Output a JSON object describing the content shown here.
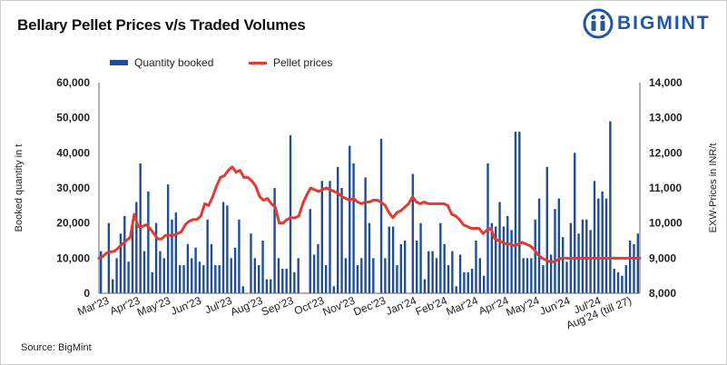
{
  "header": {
    "title": "Bellary Pellet Prices v/s Traded Volumes",
    "brand": "BIGMINT",
    "source": "Source: BigMint"
  },
  "colors": {
    "bars": "#1f4e97",
    "line": "#e23b33",
    "brand": "#1f57a4"
  },
  "chart_data": {
    "type": "bar+line",
    "title": "Bellary Pellet Prices v/s Traded Volumes",
    "ylabel_left": "Booked quantity in t",
    "ylabel_right": "EXW-Prices in INR/t",
    "y_left_range": [
      0,
      60000
    ],
    "y_right_range": [
      8000,
      14000
    ],
    "y_left_ticks": [
      "0",
      "10,000",
      "20,000",
      "30,000",
      "40,000",
      "50,000",
      "60,000"
    ],
    "y_right_ticks": [
      "8,000",
      "9,000",
      "10,000",
      "11,000",
      "12,000",
      "13,000",
      "14,000"
    ],
    "x_tick_labels": [
      "Mar'23",
      "Apr'23",
      "May'23",
      "Jun'23",
      "Jul'23",
      "Aug'23",
      "Sep'23",
      "Oct'23",
      "Nov'23",
      "Dec'23",
      "Jan'24",
      "Feb'24",
      "Mar'24",
      "Apr'24",
      "May'24",
      "Jun'24",
      "Jul'24",
      "Aug'24 (till 27)"
    ],
    "legend": {
      "position": "top",
      "entries": [
        "Quantity booked",
        "Pellet prices"
      ]
    },
    "grid": false,
    "series": [
      {
        "name": "Quantity booked",
        "type": "bar",
        "axis": "left",
        "values": [
          12000,
          0,
          20000,
          4000,
          10000,
          17000,
          22000,
          9000,
          19000,
          26000,
          37000,
          12000,
          29000,
          6000,
          20000,
          12000,
          10000,
          31000,
          21000,
          23000,
          8000,
          8000,
          14000,
          10000,
          13000,
          9000,
          8000,
          21000,
          14000,
          8000,
          8000,
          26000,
          25000,
          10000,
          13000,
          21000,
          2000,
          0,
          17000,
          10000,
          8000,
          15000,
          4000,
          4000,
          30000,
          10000,
          7000,
          7000,
          45000,
          6000,
          10000,
          0,
          0,
          24000,
          11000,
          14000,
          32000,
          8000,
          32000,
          2000,
          36000,
          30000,
          10000,
          42000,
          37000,
          8000,
          10000,
          33000,
          20000,
          10000,
          0,
          44000,
          10000,
          19000,
          19000,
          8000,
          14000,
          15000,
          0,
          34000,
          15000,
          20000,
          4000,
          12000,
          12000,
          10000,
          20000,
          14000,
          8000,
          12000,
          2000,
          11000,
          6000,
          6000,
          7000,
          15000,
          10000,
          5000,
          37000,
          20000,
          19000,
          26000,
          19000,
          22000,
          18000,
          46000,
          46000,
          10000,
          10000,
          10000,
          21000,
          27000,
          8000,
          36000,
          11000,
          24000,
          27000,
          16000,
          9000,
          20000,
          40000,
          17000,
          21000,
          21000,
          18000,
          32000,
          27000,
          29000,
          27000,
          49000,
          7000,
          6000,
          5000,
          8000,
          15000,
          14000,
          17000
        ]
      },
      {
        "name": "Pellet prices",
        "type": "line",
        "axis": "right",
        "values": [
          9000,
          9050,
          9150,
          9180,
          9200,
          9300,
          9400,
          9500,
          9600,
          10250,
          9900,
          9900,
          9950,
          9850,
          9700,
          9550,
          9550,
          9650,
          9650,
          9650,
          9700,
          9750,
          9950,
          10050,
          10100,
          10100,
          10200,
          10550,
          10500,
          10750,
          11050,
          11300,
          11350,
          11500,
          11600,
          11450,
          11500,
          11300,
          11300,
          11200,
          11050,
          10750,
          10650,
          10700,
          10550,
          10450,
          10000,
          10000,
          10100,
          10150,
          10150,
          10200,
          10550,
          10800,
          11000,
          10950,
          10900,
          10950,
          11000,
          10950,
          10900,
          10850,
          10750,
          10700,
          10650,
          10700,
          10600,
          10550,
          10600,
          10600,
          10650,
          10650,
          10600,
          10500,
          10300,
          10150,
          10300,
          10350,
          10450,
          10550,
          10750,
          10600,
          10550,
          10600,
          10550,
          10550,
          10550,
          10550,
          10550,
          10500,
          10250,
          10200,
          10100,
          9950,
          9900,
          9850,
          9850,
          9850,
          9700,
          9800,
          9850,
          9550,
          9500,
          9450,
          9400,
          9400,
          9350,
          9400,
          9450,
          9400,
          9350,
          9250,
          9100,
          9000,
          8950,
          8900,
          8900,
          8950,
          9000,
          9000,
          9000,
          9000,
          9000,
          9000,
          9000,
          9000,
          9000,
          9000,
          9000,
          9000,
          9000,
          9000,
          9000,
          9000,
          9000,
          9000,
          9000,
          9000,
          9000
        ]
      }
    ]
  }
}
